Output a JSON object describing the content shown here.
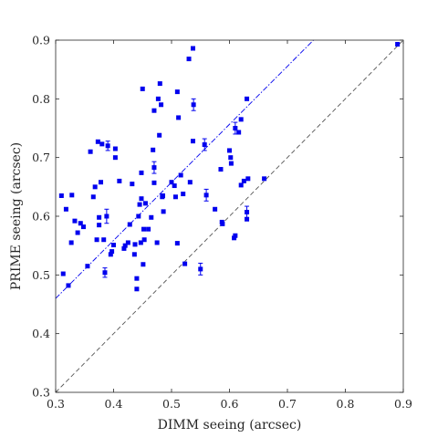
{
  "chart_data": {
    "type": "scatter",
    "title": "",
    "xlabel": "DIMM seeing (arcsec)",
    "ylabel": "PRIME seeing (arcsec)",
    "xlim": [
      0.3,
      0.9
    ],
    "ylim": [
      0.3,
      0.9
    ],
    "xticks": [
      0.3,
      0.4,
      0.5,
      0.6,
      0.7,
      0.8,
      0.9
    ],
    "yticks": [
      0.3,
      0.4,
      0.5,
      0.6,
      0.7,
      0.8,
      0.9
    ],
    "xtick_labels": [
      "0.3",
      "0.4",
      "0.5",
      "0.6",
      "0.7",
      "0.8",
      "0.9"
    ],
    "ytick_labels": [
      "0.3",
      "0.4",
      "0.5",
      "0.6",
      "0.7",
      "0.8",
      "0.9"
    ],
    "grid": false,
    "box": true,
    "marker_color": "#0000ee",
    "points": [
      {
        "x": 0.31,
        "y": 0.635
      },
      {
        "x": 0.313,
        "y": 0.502
      },
      {
        "x": 0.318,
        "y": 0.612
      },
      {
        "x": 0.322,
        "y": 0.482
      },
      {
        "x": 0.327,
        "y": 0.555
      },
      {
        "x": 0.328,
        "y": 0.636
      },
      {
        "x": 0.333,
        "y": 0.592
      },
      {
        "x": 0.338,
        "y": 0.572
      },
      {
        "x": 0.343,
        "y": 0.588
      },
      {
        "x": 0.348,
        "y": 0.582
      },
      {
        "x": 0.355,
        "y": 0.515
      },
      {
        "x": 0.36,
        "y": 0.71
      },
      {
        "x": 0.365,
        "y": 0.633
      },
      {
        "x": 0.368,
        "y": 0.65
      },
      {
        "x": 0.371,
        "y": 0.56
      },
      {
        "x": 0.373,
        "y": 0.727
      },
      {
        "x": 0.375,
        "y": 0.598
      },
      {
        "x": 0.375,
        "y": 0.585
      },
      {
        "x": 0.378,
        "y": 0.658
      },
      {
        "x": 0.38,
        "y": 0.723
      },
      {
        "x": 0.383,
        "y": 0.56
      },
      {
        "x": 0.385,
        "y": 0.504
      },
      {
        "x": 0.388,
        "y": 0.6
      },
      {
        "x": 0.39,
        "y": 0.72
      },
      {
        "x": 0.395,
        "y": 0.535
      },
      {
        "x": 0.397,
        "y": 0.54
      },
      {
        "x": 0.4,
        "y": 0.551
      },
      {
        "x": 0.403,
        "y": 0.715
      },
      {
        "x": 0.403,
        "y": 0.7
      },
      {
        "x": 0.41,
        "y": 0.66
      },
      {
        "x": 0.418,
        "y": 0.545
      },
      {
        "x": 0.42,
        "y": 0.55
      },
      {
        "x": 0.425,
        "y": 0.555
      },
      {
        "x": 0.428,
        "y": 0.586
      },
      {
        "x": 0.432,
        "y": 0.655
      },
      {
        "x": 0.436,
        "y": 0.535
      },
      {
        "x": 0.437,
        "y": 0.552
      },
      {
        "x": 0.44,
        "y": 0.476
      },
      {
        "x": 0.44,
        "y": 0.494
      },
      {
        "x": 0.443,
        "y": 0.6
      },
      {
        "x": 0.445,
        "y": 0.62
      },
      {
        "x": 0.447,
        "y": 0.555
      },
      {
        "x": 0.448,
        "y": 0.674
      },
      {
        "x": 0.448,
        "y": 0.63
      },
      {
        "x": 0.45,
        "y": 0.817
      },
      {
        "x": 0.451,
        "y": 0.518
      },
      {
        "x": 0.452,
        "y": 0.578
      },
      {
        "x": 0.453,
        "y": 0.56
      },
      {
        "x": 0.455,
        "y": 0.622
      },
      {
        "x": 0.46,
        "y": 0.578
      },
      {
        "x": 0.465,
        "y": 0.598
      },
      {
        "x": 0.468,
        "y": 0.713
      },
      {
        "x": 0.47,
        "y": 0.78
      },
      {
        "x": 0.47,
        "y": 0.683
      },
      {
        "x": 0.47,
        "y": 0.657
      },
      {
        "x": 0.475,
        "y": 0.555
      },
      {
        "x": 0.477,
        "y": 0.8
      },
      {
        "x": 0.479,
        "y": 0.738
      },
      {
        "x": 0.48,
        "y": 0.826
      },
      {
        "x": 0.482,
        "y": 0.79
      },
      {
        "x": 0.484,
        "y": 0.633
      },
      {
        "x": 0.485,
        "y": 0.635
      },
      {
        "x": 0.486,
        "y": 0.608
      },
      {
        "x": 0.5,
        "y": 0.658
      },
      {
        "x": 0.505,
        "y": 0.652
      },
      {
        "x": 0.507,
        "y": 0.633
      },
      {
        "x": 0.51,
        "y": 0.554
      },
      {
        "x": 0.51,
        "y": 0.812
      },
      {
        "x": 0.512,
        "y": 0.768
      },
      {
        "x": 0.516,
        "y": 0.67
      },
      {
        "x": 0.52,
        "y": 0.638
      },
      {
        "x": 0.523,
        "y": 0.519
      },
      {
        "x": 0.53,
        "y": 0.868
      },
      {
        "x": 0.532,
        "y": 0.658
      },
      {
        "x": 0.537,
        "y": 0.886
      },
      {
        "x": 0.537,
        "y": 0.728
      },
      {
        "x": 0.538,
        "y": 0.79
      },
      {
        "x": 0.55,
        "y": 0.51
      },
      {
        "x": 0.557,
        "y": 0.722
      },
      {
        "x": 0.56,
        "y": 0.636
      },
      {
        "x": 0.575,
        "y": 0.612
      },
      {
        "x": 0.585,
        "y": 0.68
      },
      {
        "x": 0.587,
        "y": 0.59
      },
      {
        "x": 0.588,
        "y": 0.587
      },
      {
        "x": 0.6,
        "y": 0.712
      },
      {
        "x": 0.602,
        "y": 0.7
      },
      {
        "x": 0.603,
        "y": 0.69
      },
      {
        "x": 0.608,
        "y": 0.563
      },
      {
        "x": 0.61,
        "y": 0.567
      },
      {
        "x": 0.61,
        "y": 0.75
      },
      {
        "x": 0.616,
        "y": 0.743
      },
      {
        "x": 0.62,
        "y": 0.765
      },
      {
        "x": 0.62,
        "y": 0.653
      },
      {
        "x": 0.625,
        "y": 0.66
      },
      {
        "x": 0.63,
        "y": 0.8
      },
      {
        "x": 0.63,
        "y": 0.607
      },
      {
        "x": 0.63,
        "y": 0.595
      },
      {
        "x": 0.632,
        "y": 0.664
      },
      {
        "x": 0.66,
        "y": 0.664
      },
      {
        "x": 0.89,
        "y": 0.893
      }
    ],
    "error_bars": [
      {
        "x": 0.39,
        "y": 0.72,
        "err": 0.008
      },
      {
        "x": 0.388,
        "y": 0.6,
        "err": 0.012
      },
      {
        "x": 0.385,
        "y": 0.504,
        "err": 0.008
      },
      {
        "x": 0.47,
        "y": 0.683,
        "err": 0.01
      },
      {
        "x": 0.538,
        "y": 0.79,
        "err": 0.01
      },
      {
        "x": 0.55,
        "y": 0.51,
        "err": 0.01
      },
      {
        "x": 0.557,
        "y": 0.722,
        "err": 0.01
      },
      {
        "x": 0.56,
        "y": 0.636,
        "err": 0.01
      },
      {
        "x": 0.61,
        "y": 0.75,
        "err": 0.01
      },
      {
        "x": 0.63,
        "y": 0.607,
        "err": 0.01
      }
    ],
    "lines": [
      {
        "style": "dashed",
        "color": "#555555",
        "x": [
          0.3,
          0.9
        ],
        "y": [
          0.3,
          0.9
        ]
      },
      {
        "style": "dash-dot",
        "color": "#0000ee",
        "x": [
          0.3,
          0.745
        ],
        "y": [
          0.46,
          0.9
        ]
      }
    ]
  }
}
